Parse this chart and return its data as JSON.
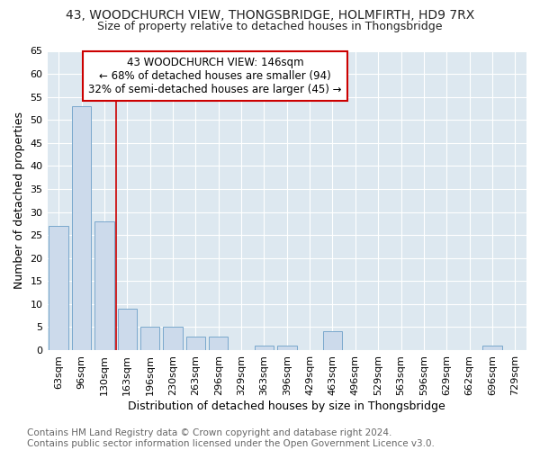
{
  "title": "43, WOODCHURCH VIEW, THONGSBRIDGE, HOLMFIRTH, HD9 7RX",
  "subtitle": "Size of property relative to detached houses in Thongsbridge",
  "xlabel": "Distribution of detached houses by size in Thongsbridge",
  "ylabel": "Number of detached properties",
  "categories": [
    "63sqm",
    "96sqm",
    "130sqm",
    "163sqm",
    "196sqm",
    "230sqm",
    "263sqm",
    "296sqm",
    "329sqm",
    "363sqm",
    "396sqm",
    "429sqm",
    "463sqm",
    "496sqm",
    "529sqm",
    "563sqm",
    "596sqm",
    "629sqm",
    "662sqm",
    "696sqm",
    "729sqm"
  ],
  "values": [
    27,
    53,
    28,
    9,
    5,
    5,
    3,
    3,
    0,
    1,
    1,
    0,
    4,
    0,
    0,
    0,
    0,
    0,
    0,
    1,
    0
  ],
  "bar_color": "#ccdaeb",
  "bar_edge_color": "#7aa8cc",
  "ylim": [
    0,
    65
  ],
  "yticks": [
    0,
    5,
    10,
    15,
    20,
    25,
    30,
    35,
    40,
    45,
    50,
    55,
    60,
    65
  ],
  "property_line_x": 2.5,
  "annotation_line1": "43 WOODCHURCH VIEW: 146sqm",
  "annotation_line2": "← 68% of detached houses are smaller (94)",
  "annotation_line3": "32% of semi-detached houses are larger (45) →",
  "annotation_box_color": "#ffffff",
  "annotation_border_color": "#cc0000",
  "red_line_color": "#cc0000",
  "footer_text": "Contains HM Land Registry data © Crown copyright and database right 2024.\nContains public sector information licensed under the Open Government Licence v3.0.",
  "fig_background_color": "#ffffff",
  "plot_background_color": "#dde8f0",
  "grid_color": "#ffffff",
  "title_fontsize": 10,
  "subtitle_fontsize": 9,
  "axis_label_fontsize": 9,
  "tick_fontsize": 8,
  "annotation_fontsize": 8.5,
  "footer_fontsize": 7.5
}
